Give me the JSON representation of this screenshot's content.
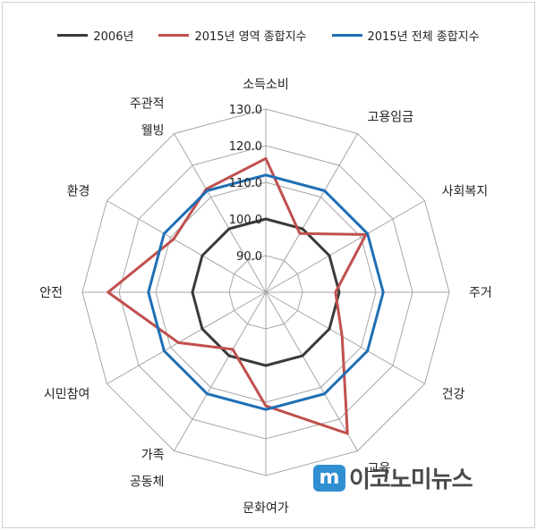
{
  "chart_data": {
    "type": "radar",
    "categories": [
      "소득소비",
      "고용임금",
      "사회복지",
      "주거",
      "건강",
      "교육",
      "문화여가",
      "가족공동체",
      "시민참여",
      "안전",
      "환경",
      "주관적 웰빙"
    ],
    "category_lines": [
      [
        "소득소비"
      ],
      [
        "고용임금"
      ],
      [
        "사회복지"
      ],
      [
        "주거"
      ],
      [
        "건강"
      ],
      [
        "교육"
      ],
      [
        "문화여가"
      ],
      [
        "가족",
        "공동체"
      ],
      [
        "시민참여"
      ],
      [
        "안전"
      ],
      [
        "환경"
      ],
      [
        "주관적",
        "웰빙"
      ]
    ],
    "rlim": [
      80,
      130
    ],
    "ticks": [
      "90.0",
      "100.0",
      "110.0",
      "120.0",
      "130.0"
    ],
    "tick_values": [
      90,
      100,
      110,
      120,
      130
    ],
    "series": [
      {
        "name": "2006년",
        "color": "#3a3a3a",
        "values": [
          100,
          100,
          100,
          100,
          100,
          100,
          100,
          100,
          100,
          100,
          100,
          100
        ]
      },
      {
        "name": "2015년 영역 종합지수",
        "color": "#c0504d",
        "values": [
          116.5,
          98.5,
          111.5,
          99.0,
          104.0,
          124.5,
          111.0,
          98.0,
          107.5,
          123.0,
          109.0,
          112.5
        ]
      },
      {
        "name": "2015년 전체 종합지수",
        "color": "#1f6fb5",
        "values": [
          112,
          112,
          112,
          112,
          112,
          112,
          112,
          112,
          112,
          112,
          112,
          112
        ]
      }
    ]
  },
  "watermark": {
    "mark": "m",
    "text": "이코노미뉴스"
  }
}
